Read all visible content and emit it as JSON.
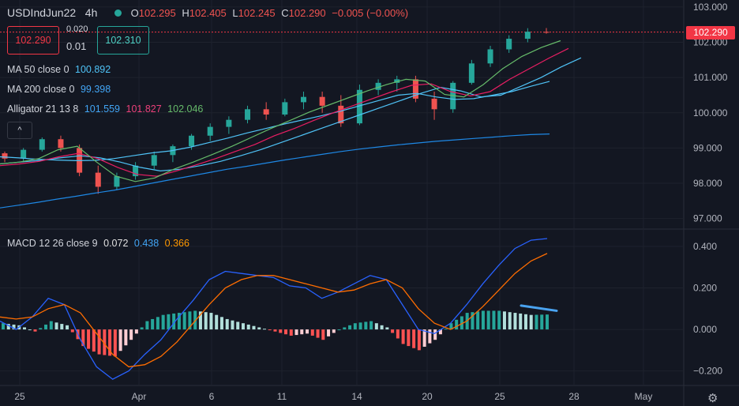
{
  "header": {
    "symbol": "USDIndJun22",
    "interval": "4h",
    "o_label": "O",
    "o": "102.295",
    "h_label": "H",
    "h": "102.405",
    "l_label": "L",
    "l": "102.245",
    "c_label": "C",
    "c": "102.290",
    "change": "−0.005 (−0.00%)"
  },
  "trade": {
    "sell": "102.290",
    "spread_top": "0.020",
    "spread_bottom": "0.01",
    "buy": "102.310"
  },
  "indicators": {
    "ma50_label": "MA 50 close 0",
    "ma50_value": "100.892",
    "ma200_label": "MA 200 close 0",
    "ma200_value": "99.398",
    "alligator_label": "Alligator 21 13 8",
    "alligator_jaw": "101.559",
    "alligator_teeth": "101.827",
    "alligator_lips": "102.046",
    "collapse_symbol": "^"
  },
  "macd_legend": {
    "label": "MACD 12 26 close 9",
    "hist": "0.072",
    "macd": "0.438",
    "signal": "0.366"
  },
  "last_price_tag": "102.290",
  "colors": {
    "background": "#131722",
    "up": "#26a69a",
    "down": "#ef5350",
    "ma50": "#2196f3",
    "ma200": "#1e88e5",
    "jaw": "#2196f3",
    "teeth": "#e91e63",
    "lips": "#66bb6a",
    "macd": "#2962ff",
    "signal": "#ff6d00",
    "hist_up_strong": "#26a69a",
    "hist_up_weak": "#b2dfdb",
    "hist_down_strong": "#ff5252",
    "hist_down_weak": "#ffcdd2"
  },
  "chart_data": [
    {
      "type": "candlestick",
      "title": "USDIndJun22 4h",
      "y_ticks": [
        "97.000",
        "98.000",
        "99.000",
        "100.000",
        "101.000",
        "102.000",
        "103.000"
      ],
      "x_ticks": [
        "25",
        "Apr",
        "6",
        "11",
        "14",
        "20",
        "25",
        "28",
        "May"
      ],
      "ylim": [
        96.7,
        103.2
      ],
      "last_price": 102.29,
      "series": [
        {
          "name": "MA 50 close 0",
          "role": "ma50",
          "values": [
            98.75,
            98.72,
            98.68,
            98.66,
            98.64,
            98.65,
            98.7,
            98.78,
            98.86,
            98.92,
            99.02,
            99.15,
            99.28,
            99.42,
            99.55,
            99.68,
            99.8,
            99.92,
            100.05,
            100.2,
            100.35,
            100.5,
            100.55,
            100.45,
            100.38,
            100.4,
            100.5,
            100.6,
            100.75,
            100.89
          ]
        },
        {
          "name": "MA 200 close 0",
          "role": "ma200",
          "values": [
            97.3,
            97.38,
            97.46,
            97.55,
            97.63,
            97.72,
            97.8,
            97.9,
            98.0,
            98.1,
            98.2,
            98.3,
            98.4,
            98.48,
            98.57,
            98.66,
            98.74,
            98.82,
            98.9,
            98.97,
            99.03,
            99.09,
            99.14,
            99.19,
            99.23,
            99.27,
            99.31,
            99.35,
            99.38,
            99.398
          ]
        },
        {
          "name": "Alligator jaw",
          "role": "jaw",
          "values": [
            98.55,
            98.6,
            98.65,
            98.72,
            98.78,
            98.72,
            98.6,
            98.45,
            98.35,
            98.4,
            98.5,
            98.62,
            98.78,
            98.95,
            99.15,
            99.35,
            99.55,
            99.75,
            99.95,
            100.15,
            100.35,
            100.55,
            100.72,
            100.62,
            100.45,
            100.5,
            100.75,
            101.0,
            101.3,
            101.559
          ]
        },
        {
          "name": "Alligator teeth",
          "role": "teeth",
          "values": [
            98.5,
            98.55,
            98.62,
            98.75,
            98.85,
            98.7,
            98.45,
            98.25,
            98.2,
            98.35,
            98.52,
            98.7,
            98.9,
            99.1,
            99.35,
            99.55,
            99.78,
            100.0,
            100.2,
            100.4,
            100.6,
            100.78,
            100.82,
            100.6,
            100.48,
            100.6,
            100.95,
            101.25,
            101.55,
            101.827
          ]
        },
        {
          "name": "Alligator lips",
          "role": "lips",
          "values": [
            98.55,
            98.6,
            98.7,
            98.95,
            99.05,
            98.6,
            98.2,
            98.05,
            98.15,
            98.4,
            98.6,
            98.82,
            99.05,
            99.3,
            99.55,
            99.78,
            100.02,
            100.22,
            100.42,
            100.62,
            100.8,
            100.95,
            100.9,
            100.52,
            100.45,
            100.8,
            101.25,
            101.6,
            101.85,
            102.046
          ]
        }
      ],
      "candles": [
        [
          98.85,
          98.9,
          98.6,
          98.7
        ],
        [
          98.7,
          99.0,
          98.6,
          98.95
        ],
        [
          98.95,
          99.3,
          98.9,
          99.25
        ],
        [
          99.25,
          99.35,
          98.9,
          99.0
        ],
        [
          99.0,
          99.1,
          98.2,
          98.3
        ],
        [
          98.3,
          98.5,
          97.7,
          97.9
        ],
        [
          97.9,
          98.3,
          97.8,
          98.2
        ],
        [
          98.2,
          98.6,
          98.1,
          98.5
        ],
        [
          98.5,
          98.9,
          98.4,
          98.8
        ],
        [
          98.8,
          99.1,
          98.6,
          99.05
        ],
        [
          99.05,
          99.4,
          98.95,
          99.35
        ],
        [
          99.35,
          99.7,
          99.2,
          99.6
        ],
        [
          99.6,
          99.9,
          99.4,
          99.8
        ],
        [
          99.8,
          100.2,
          99.7,
          100.1
        ],
        [
          100.1,
          100.3,
          99.8,
          99.95
        ],
        [
          99.95,
          100.4,
          99.9,
          100.3
        ],
        [
          100.3,
          100.6,
          100.1,
          100.45
        ],
        [
          100.45,
          100.6,
          100.0,
          100.2
        ],
        [
          100.2,
          100.5,
          99.6,
          99.7
        ],
        [
          99.7,
          100.8,
          99.65,
          100.65
        ],
        [
          100.65,
          100.95,
          100.5,
          100.85
        ],
        [
          100.85,
          101.05,
          100.6,
          100.95
        ],
        [
          100.95,
          101.05,
          100.3,
          100.4
        ],
        [
          100.4,
          100.6,
          99.8,
          100.1
        ],
        [
          100.1,
          100.9,
          100.0,
          100.85
        ],
        [
          100.85,
          101.5,
          100.8,
          101.4
        ],
        [
          101.4,
          101.9,
          101.3,
          101.8
        ],
        [
          101.8,
          102.2,
          101.7,
          102.1
        ],
        [
          102.1,
          102.4,
          102.0,
          102.3
        ],
        [
          102.295,
          102.405,
          102.245,
          102.29
        ]
      ]
    },
    {
      "type": "macd",
      "title": "MACD 12 26 close 9",
      "y_ticks": [
        "−0.200",
        "0.000",
        "0.200",
        "0.400"
      ],
      "ylim": [
        -0.27,
        0.48
      ],
      "series": [
        {
          "name": "MACD",
          "role": "macd",
          "values": [
            0.04,
            0.0,
            0.06,
            0.15,
            0.12,
            -0.05,
            -0.18,
            -0.24,
            -0.2,
            -0.12,
            -0.05,
            0.05,
            0.14,
            0.24,
            0.28,
            0.27,
            0.26,
            0.25,
            0.21,
            0.2,
            0.15,
            0.18,
            0.22,
            0.26,
            0.24,
            0.12,
            0.0,
            -0.02,
            0.03,
            0.12,
            0.22,
            0.31,
            0.39,
            0.43,
            0.438
          ]
        },
        {
          "name": "Signal",
          "role": "signal",
          "values": [
            0.06,
            0.05,
            0.06,
            0.1,
            0.12,
            0.08,
            -0.02,
            -0.12,
            -0.18,
            -0.17,
            -0.13,
            -0.06,
            0.03,
            0.12,
            0.2,
            0.24,
            0.26,
            0.26,
            0.24,
            0.22,
            0.2,
            0.18,
            0.19,
            0.22,
            0.24,
            0.2,
            0.1,
            0.03,
            0.0,
            0.04,
            0.11,
            0.19,
            0.27,
            0.33,
            0.366
          ]
        }
      ],
      "histogram": [
        0.03,
        0.02,
        -0.01,
        0.04,
        0.02,
        -0.08,
        -0.12,
        -0.13,
        -0.05,
        0.04,
        0.07,
        0.08,
        0.09,
        0.08,
        0.05,
        0.03,
        0.01,
        -0.01,
        -0.03,
        -0.02,
        -0.05,
        0.0,
        0.03,
        0.04,
        0.01,
        -0.07,
        -0.1,
        -0.05,
        0.03,
        0.08,
        0.09,
        0.09,
        0.08,
        0.07,
        0.072
      ]
    }
  ]
}
